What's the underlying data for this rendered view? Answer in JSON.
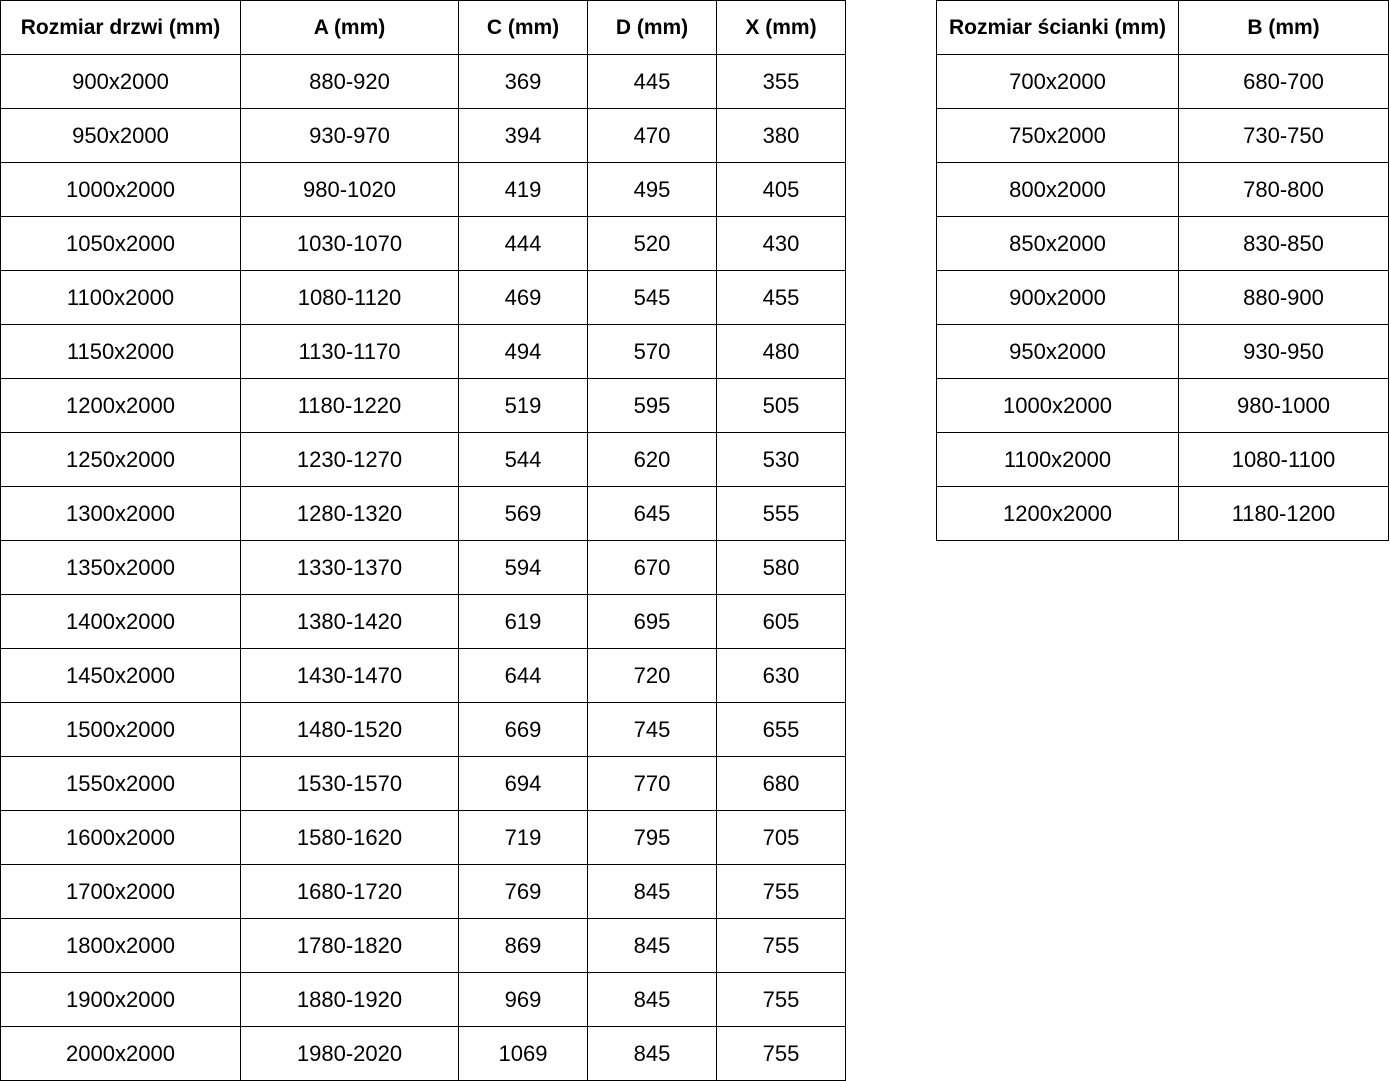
{
  "colors": {
    "background": "#ffffff",
    "border": "#000000",
    "text": "#000000"
  },
  "door_table": {
    "title": "door dimensions table",
    "headers": [
      "Rozmiar drzwi (mm)",
      "A (mm)",
      "C (mm)",
      "D (mm)",
      "X (mm)"
    ],
    "rows": [
      [
        "900x2000",
        "880-920",
        "369",
        "445",
        "355"
      ],
      [
        "950x2000",
        "930-970",
        "394",
        "470",
        "380"
      ],
      [
        "1000x2000",
        "980-1020",
        "419",
        "495",
        "405"
      ],
      [
        "1050x2000",
        "1030-1070",
        "444",
        "520",
        "430"
      ],
      [
        "1100x2000",
        "1080-1120",
        "469",
        "545",
        "455"
      ],
      [
        "1150x2000",
        "1130-1170",
        "494",
        "570",
        "480"
      ],
      [
        "1200x2000",
        "1180-1220",
        "519",
        "595",
        "505"
      ],
      [
        "1250x2000",
        "1230-1270",
        "544",
        "620",
        "530"
      ],
      [
        "1300x2000",
        "1280-1320",
        "569",
        "645",
        "555"
      ],
      [
        "1350x2000",
        "1330-1370",
        "594",
        "670",
        "580"
      ],
      [
        "1400x2000",
        "1380-1420",
        "619",
        "695",
        "605"
      ],
      [
        "1450x2000",
        "1430-1470",
        "644",
        "720",
        "630"
      ],
      [
        "1500x2000",
        "1480-1520",
        "669",
        "745",
        "655"
      ],
      [
        "1550x2000",
        "1530-1570",
        "694",
        "770",
        "680"
      ],
      [
        "1600x2000",
        "1580-1620",
        "719",
        "795",
        "705"
      ],
      [
        "1700x2000",
        "1680-1720",
        "769",
        "845",
        "755"
      ],
      [
        "1800x2000",
        "1780-1820",
        "869",
        "845",
        "755"
      ],
      [
        "1900x2000",
        "1880-1920",
        "969",
        "845",
        "755"
      ],
      [
        "2000x2000",
        "1980-2020",
        "1069",
        "845",
        "755"
      ]
    ]
  },
  "wall_table": {
    "title": "wall panel dimensions table",
    "headers": [
      "Rozmiar ścianki (mm)",
      "B (mm)"
    ],
    "rows": [
      [
        "700x2000",
        "680-700"
      ],
      [
        "750x2000",
        "730-750"
      ],
      [
        "800x2000",
        "780-800"
      ],
      [
        "850x2000",
        "830-850"
      ],
      [
        "900x2000",
        "880-900"
      ],
      [
        "950x2000",
        "930-950"
      ],
      [
        "1000x2000",
        "980-1000"
      ],
      [
        "1100x2000",
        "1080-1100"
      ],
      [
        "1200x2000",
        "1180-1200"
      ]
    ]
  }
}
